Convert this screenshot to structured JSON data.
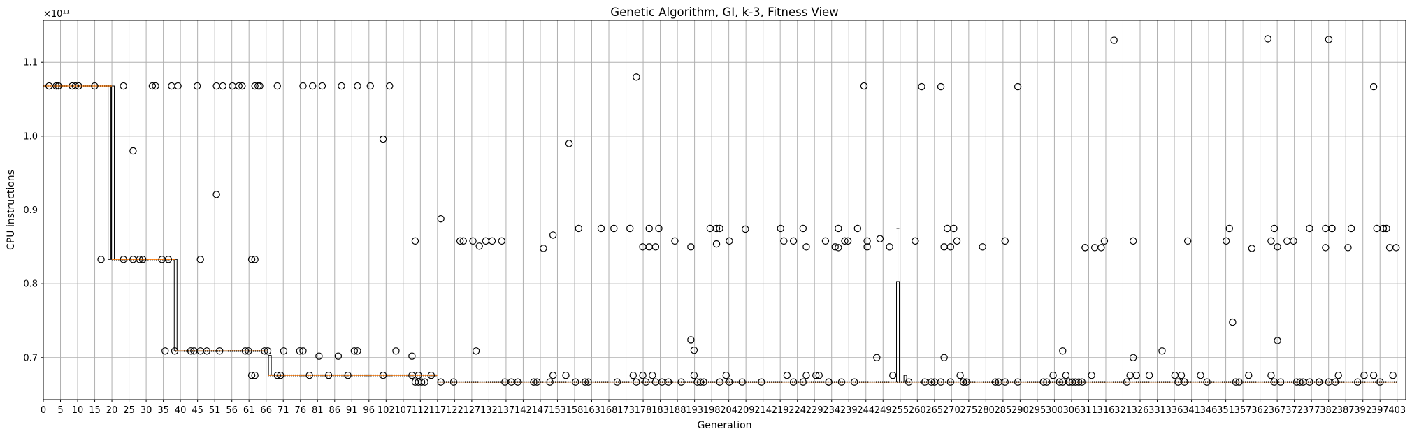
{
  "chart_data": {
    "type": "box",
    "title": "Genetic Algorithm, GI, k-3, Fitness View",
    "xlabel": "Generation",
    "ylabel": "CPU instructions",
    "y_offset_label": "×10¹¹",
    "y_scale_exponent": 11,
    "xlim": [
      0,
      403
    ],
    "ylim": [
      0.643,
      1.157
    ],
    "grid": true,
    "x_ticks": [
      0,
      5,
      10,
      15,
      20,
      25,
      30,
      35,
      40,
      45,
      51,
      56,
      61,
      66,
      71,
      76,
      81,
      86,
      91,
      96,
      102,
      107,
      112,
      117,
      122,
      127,
      132,
      137,
      142,
      147,
      153,
      158,
      163,
      168,
      173,
      178,
      183,
      188,
      193,
      198,
      204,
      209,
      214,
      219,
      224,
      229,
      234,
      239,
      244,
      249,
      255,
      260,
      265,
      270,
      275,
      280,
      285,
      290,
      295,
      300,
      306,
      311,
      316,
      321,
      326,
      331,
      336,
      341,
      346,
      351,
      357,
      362,
      367,
      372,
      377,
      382,
      387,
      392,
      397,
      403
    ],
    "y_ticks": [
      0.7,
      0.8,
      0.9,
      1.0,
      1.1
    ],
    "y_tick_labels": [
      "0.7",
      "0.8",
      "0.9",
      "1.0",
      "1.1"
    ],
    "median_segments": [
      {
        "x": [
          0,
          20
        ],
        "y": 1.068
      },
      {
        "x": [
          20,
          38.5
        ],
        "y": 0.833
      },
      {
        "x": [
          38.5,
          66.5
        ],
        "y": 0.709
      },
      {
        "x": [
          66.5,
          117
        ],
        "y": 0.676
      },
      {
        "x": [
          117,
          403
        ],
        "y": 0.667
      }
    ],
    "boxes": [
      {
        "x": 19.3,
        "low": 0.833,
        "high": 1.068
      },
      {
        "x": 20.3,
        "low": 0.833,
        "high": 1.068
      },
      {
        "x": 38.6,
        "low": 0.709,
        "high": 0.833
      },
      {
        "x": 67.1,
        "low": 0.676,
        "high": 0.703
      },
      {
        "x": 254.2,
        "low": 0.667,
        "high": 0.803,
        "whisker_high": 0.875
      },
      {
        "x": 256.5,
        "low": 0.667,
        "high": 0.676
      }
    ],
    "outliers": [
      [
        1.8,
        1.068
      ],
      [
        4,
        1.068
      ],
      [
        4.7,
        1.068
      ],
      [
        9,
        1.068
      ],
      [
        10,
        1.068
      ],
      [
        11,
        1.068
      ],
      [
        16,
        1.068
      ],
      [
        18,
        0.833
      ],
      [
        25,
        1.068
      ],
      [
        25,
        0.833
      ],
      [
        28,
        0.98
      ],
      [
        28,
        0.833
      ],
      [
        30,
        0.833
      ],
      [
        31,
        0.833
      ],
      [
        34,
        1.068
      ],
      [
        35,
        1.068
      ],
      [
        37,
        0.833
      ],
      [
        38,
        0.709
      ],
      [
        39,
        0.833
      ],
      [
        40,
        1.068
      ],
      [
        42,
        1.068
      ],
      [
        41,
        0.709
      ],
      [
        46,
        0.709
      ],
      [
        47,
        0.709
      ],
      [
        48,
        1.068
      ],
      [
        49,
        0.833
      ],
      [
        49,
        0.709
      ],
      [
        51,
        0.709
      ],
      [
        54,
        0.921
      ],
      [
        54,
        1.068
      ],
      [
        55,
        0.709
      ],
      [
        56,
        1.068
      ],
      [
        59,
        1.068
      ],
      [
        61,
        1.068
      ],
      [
        62,
        1.068
      ],
      [
        63,
        0.709
      ],
      [
        64,
        0.709
      ],
      [
        65,
        0.833
      ],
      [
        66,
        0.833
      ],
      [
        65,
        0.676
      ],
      [
        66,
        0.676
      ],
      [
        66,
        1.068
      ],
      [
        67,
        1.068
      ],
      [
        67.5,
        1.068
      ],
      [
        69,
        0.709
      ],
      [
        70,
        0.709
      ],
      [
        73,
        1.068
      ],
      [
        73,
        0.676
      ],
      [
        74,
        0.676
      ],
      [
        75,
        0.709
      ],
      [
        80,
        0.709
      ],
      [
        81,
        0.709
      ],
      [
        81,
        1.068
      ],
      [
        84,
        1.068
      ],
      [
        83,
        0.676
      ],
      [
        86,
        0.702
      ],
      [
        87,
        1.068
      ],
      [
        89,
        0.676
      ],
      [
        92,
        0.702
      ],
      [
        93,
        1.068
      ],
      [
        95,
        0.676
      ],
      [
        97,
        0.709
      ],
      [
        98,
        0.709
      ],
      [
        98,
        1.068
      ],
      [
        102,
        1.068
      ],
      [
        106,
        0.996
      ],
      [
        106,
        0.676
      ],
      [
        108,
        1.068
      ],
      [
        110,
        0.709
      ],
      [
        115,
        0.702
      ],
      [
        115,
        0.676
      ],
      [
        116,
        0.858
      ],
      [
        116,
        0.667
      ],
      [
        117,
        0.676
      ],
      [
        117,
        0.667
      ],
      [
        118,
        0.667
      ],
      [
        119,
        0.667
      ],
      [
        121,
        0.676
      ],
      [
        124,
        0.888
      ],
      [
        124,
        0.667
      ],
      [
        128,
        0.667
      ],
      [
        130,
        0.858
      ],
      [
        131,
        0.858
      ],
      [
        134,
        0.858
      ],
      [
        135,
        0.709
      ],
      [
        136,
        0.851
      ],
      [
        138,
        0.858
      ],
      [
        140,
        0.858
      ],
      [
        143,
        0.858
      ],
      [
        144,
        0.667
      ],
      [
        146,
        0.667
      ],
      [
        148,
        0.667
      ],
      [
        153,
        0.667
      ],
      [
        154,
        0.667
      ],
      [
        156,
        0.848
      ],
      [
        158,
        0.667
      ],
      [
        159,
        0.866
      ],
      [
        159,
        0.676
      ],
      [
        163,
        0.676
      ],
      [
        164,
        0.99
      ],
      [
        166,
        0.667
      ],
      [
        167,
        0.875
      ],
      [
        169,
        0.667
      ],
      [
        170,
        0.667
      ],
      [
        174,
        0.875
      ],
      [
        178,
        0.875
      ],
      [
        179,
        0.667
      ],
      [
        183,
        0.875
      ],
      [
        184,
        0.676
      ],
      [
        185,
        1.08
      ],
      [
        185,
        0.667
      ],
      [
        187,
        0.85
      ],
      [
        187,
        0.676
      ],
      [
        188,
        0.667
      ],
      [
        189,
        0.875
      ],
      [
        189,
        0.85
      ],
      [
        190,
        0.676
      ],
      [
        191,
        0.85
      ],
      [
        191,
        0.667
      ],
      [
        192,
        0.875
      ],
      [
        193,
        0.667
      ],
      [
        195,
        0.667
      ],
      [
        197,
        0.858
      ],
      [
        199,
        0.667
      ],
      [
        202,
        0.724
      ],
      [
        202,
        0.85
      ],
      [
        203,
        0.71
      ],
      [
        203,
        0.676
      ],
      [
        204,
        0.667
      ],
      [
        205,
        0.667
      ],
      [
        206,
        0.667
      ],
      [
        208,
        0.875
      ],
      [
        210,
        0.875
      ],
      [
        210,
        0.854
      ],
      [
        211,
        0.875
      ],
      [
        211,
        0.667
      ],
      [
        213,
        0.676
      ],
      [
        214,
        0.858
      ],
      [
        214,
        0.667
      ],
      [
        218,
        0.667
      ],
      [
        219,
        0.874
      ],
      [
        224,
        0.667
      ],
      [
        230,
        0.875
      ],
      [
        231,
        0.858
      ],
      [
        232,
        0.676
      ],
      [
        234,
        0.858
      ],
      [
        234,
        0.667
      ],
      [
        237,
        0.875
      ],
      [
        237,
        0.667
      ],
      [
        238,
        0.85
      ],
      [
        238,
        0.676
      ],
      [
        241,
        0.676
      ],
      [
        242,
        0.676
      ],
      [
        244,
        0.858
      ],
      [
        245,
        0.667
      ],
      [
        245,
        0.667
      ],
      [
        247,
        0.85
      ],
      [
        248,
        0.875
      ],
      [
        248,
        0.849
      ],
      [
        249,
        0.667
      ],
      [
        250,
        0.858
      ],
      [
        251,
        0.858
      ],
      [
        253,
        0.667
      ],
      [
        254,
        0.875
      ],
      [
        256,
        1.068
      ],
      [
        257,
        0.85
      ],
      [
        257,
        0.858
      ],
      [
        260,
        0.7
      ],
      [
        261,
        0.861
      ],
      [
        264,
        0.85
      ],
      [
        265,
        0.676
      ],
      [
        270,
        0.667
      ],
      [
        272,
        0.858
      ],
      [
        274,
        1.067
      ],
      [
        275,
        0.667
      ],
      [
        277,
        0.667
      ],
      [
        278,
        0.667
      ],
      [
        280,
        1.067
      ],
      [
        280,
        0.667
      ],
      [
        281,
        0.85
      ],
      [
        281,
        0.7
      ],
      [
        282,
        0.875
      ],
      [
        283,
        0.85
      ],
      [
        284,
        0.875
      ],
      [
        283,
        0.667
      ],
      [
        285,
        0.858
      ],
      [
        286,
        0.676
      ],
      [
        287,
        0.667
      ],
      [
        287,
        0.667
      ],
      [
        288,
        0.667
      ],
      [
        293,
        0.85
      ],
      [
        297,
        0.667
      ],
      [
        298,
        0.667
      ],
      [
        300,
        0.858
      ],
      [
        300,
        0.667
      ],
      [
        304,
        1.067
      ],
      [
        304,
        0.667
      ],
      [
        312,
        0.667
      ],
      [
        313,
        0.667
      ],
      [
        315,
        0.676
      ],
      [
        317,
        0.667
      ],
      [
        318,
        0.709
      ],
      [
        318,
        0.667
      ],
      [
        319,
        0.676
      ],
      [
        320,
        0.667
      ],
      [
        320,
        0.667
      ],
      [
        321,
        0.667
      ],
      [
        322,
        0.667
      ],
      [
        323,
        0.667
      ],
      [
        324,
        0.667
      ],
      [
        325,
        0.849
      ],
      [
        325,
        0.849
      ],
      [
        327,
        0.676
      ],
      [
        328,
        0.849
      ],
      [
        330,
        0.849
      ],
      [
        331,
        0.858
      ],
      [
        334,
        1.13
      ],
      [
        338,
        0.667
      ],
      [
        339,
        0.676
      ],
      [
        340,
        0.7
      ],
      [
        340,
        0.858
      ],
      [
        341,
        0.676
      ],
      [
        345,
        0.676
      ],
      [
        349,
        0.709
      ],
      [
        353,
        0.676
      ],
      [
        354,
        0.667
      ],
      [
        355,
        0.676
      ],
      [
        356,
        0.667
      ],
      [
        357,
        0.858
      ],
      [
        361,
        0.676
      ],
      [
        363,
        0.667
      ],
      [
        369,
        0.858
      ],
      [
        370,
        0.875
      ],
      [
        371,
        0.748
      ],
      [
        372,
        0.667
      ],
      [
        373,
        0.667
      ],
      [
        376,
        0.676
      ],
      [
        377,
        0.848
      ],
      [
        382,
        1.132
      ],
      [
        383,
        0.858
      ],
      [
        383,
        0.676
      ],
      [
        384,
        0.875
      ],
      [
        384,
        0.667
      ],
      [
        385,
        0.85
      ],
      [
        385,
        0.723
      ],
      [
        386,
        0.667
      ],
      [
        388,
        0.858
      ],
      [
        390,
        0.858
      ],
      [
        391,
        0.667
      ],
      [
        392,
        0.667
      ],
      [
        393,
        0.667
      ],
      [
        395,
        0.875
      ],
      [
        395,
        0.667
      ],
      [
        398,
        0.667
      ],
      [
        398,
        0.667
      ],
      [
        400,
        0.849
      ],
      [
        400,
        0.875
      ],
      [
        401,
        1.131
      ],
      [
        401,
        0.667
      ],
      [
        402,
        0.875
      ],
      [
        402,
        0.875
      ],
      [
        403,
        0.667
      ],
      [
        404,
        0.676
      ],
      [
        407,
        0.849
      ],
      [
        408,
        0.875
      ],
      [
        410,
        0.667
      ],
      [
        412,
        0.676
      ],
      [
        415,
        0.676
      ],
      [
        415,
        1.067
      ],
      [
        416,
        0.875
      ],
      [
        417,
        0.667
      ],
      [
        418,
        0.875
      ],
      [
        419,
        0.875
      ],
      [
        420,
        0.849
      ],
      [
        421,
        0.676
      ],
      [
        422,
        0.849
      ]
    ]
  }
}
